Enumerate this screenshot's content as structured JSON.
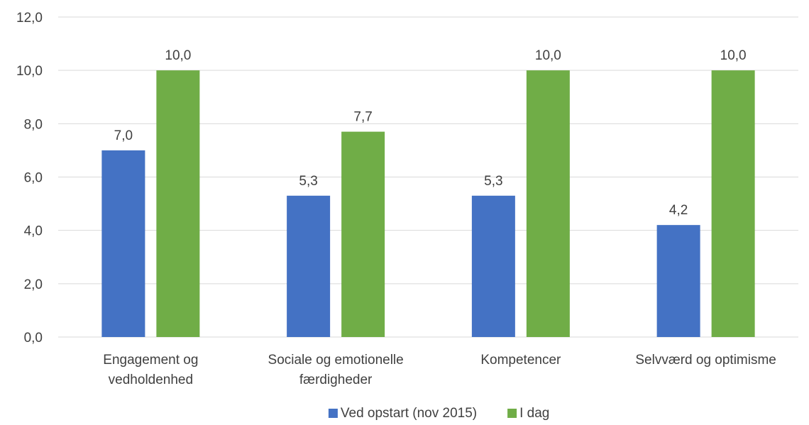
{
  "chart_data": {
    "type": "bar",
    "categories": [
      [
        "Engagement og",
        "vedholdenhed"
      ],
      [
        "Sociale og emotionelle",
        "færdigheder"
      ],
      [
        "Kompetencer"
      ],
      [
        "Selvværd og optimisme"
      ]
    ],
    "series": [
      {
        "name": "Ved opstart (nov 2015)",
        "color": "#4472C4",
        "values": [
          7.0,
          5.3,
          5.3,
          4.2
        ],
        "labels": [
          "7,0",
          "5,3",
          "5,3",
          "4,2"
        ]
      },
      {
        "name": "I dag",
        "color": "#70AD47",
        "values": [
          10.0,
          7.7,
          10.0,
          10.0
        ],
        "labels": [
          "10,0",
          "7,7",
          "10,0",
          "10,0"
        ]
      }
    ],
    "ylim": [
      0,
      12
    ],
    "yticks": [
      0,
      2,
      4,
      6,
      8,
      10,
      12
    ],
    "ytick_labels": [
      "0,0",
      "2,0",
      "4,0",
      "6,0",
      "8,0",
      "10,0",
      "12,0"
    ],
    "grid": true,
    "legend_position": "bottom",
    "title": "",
    "xlabel": "",
    "ylabel": ""
  }
}
